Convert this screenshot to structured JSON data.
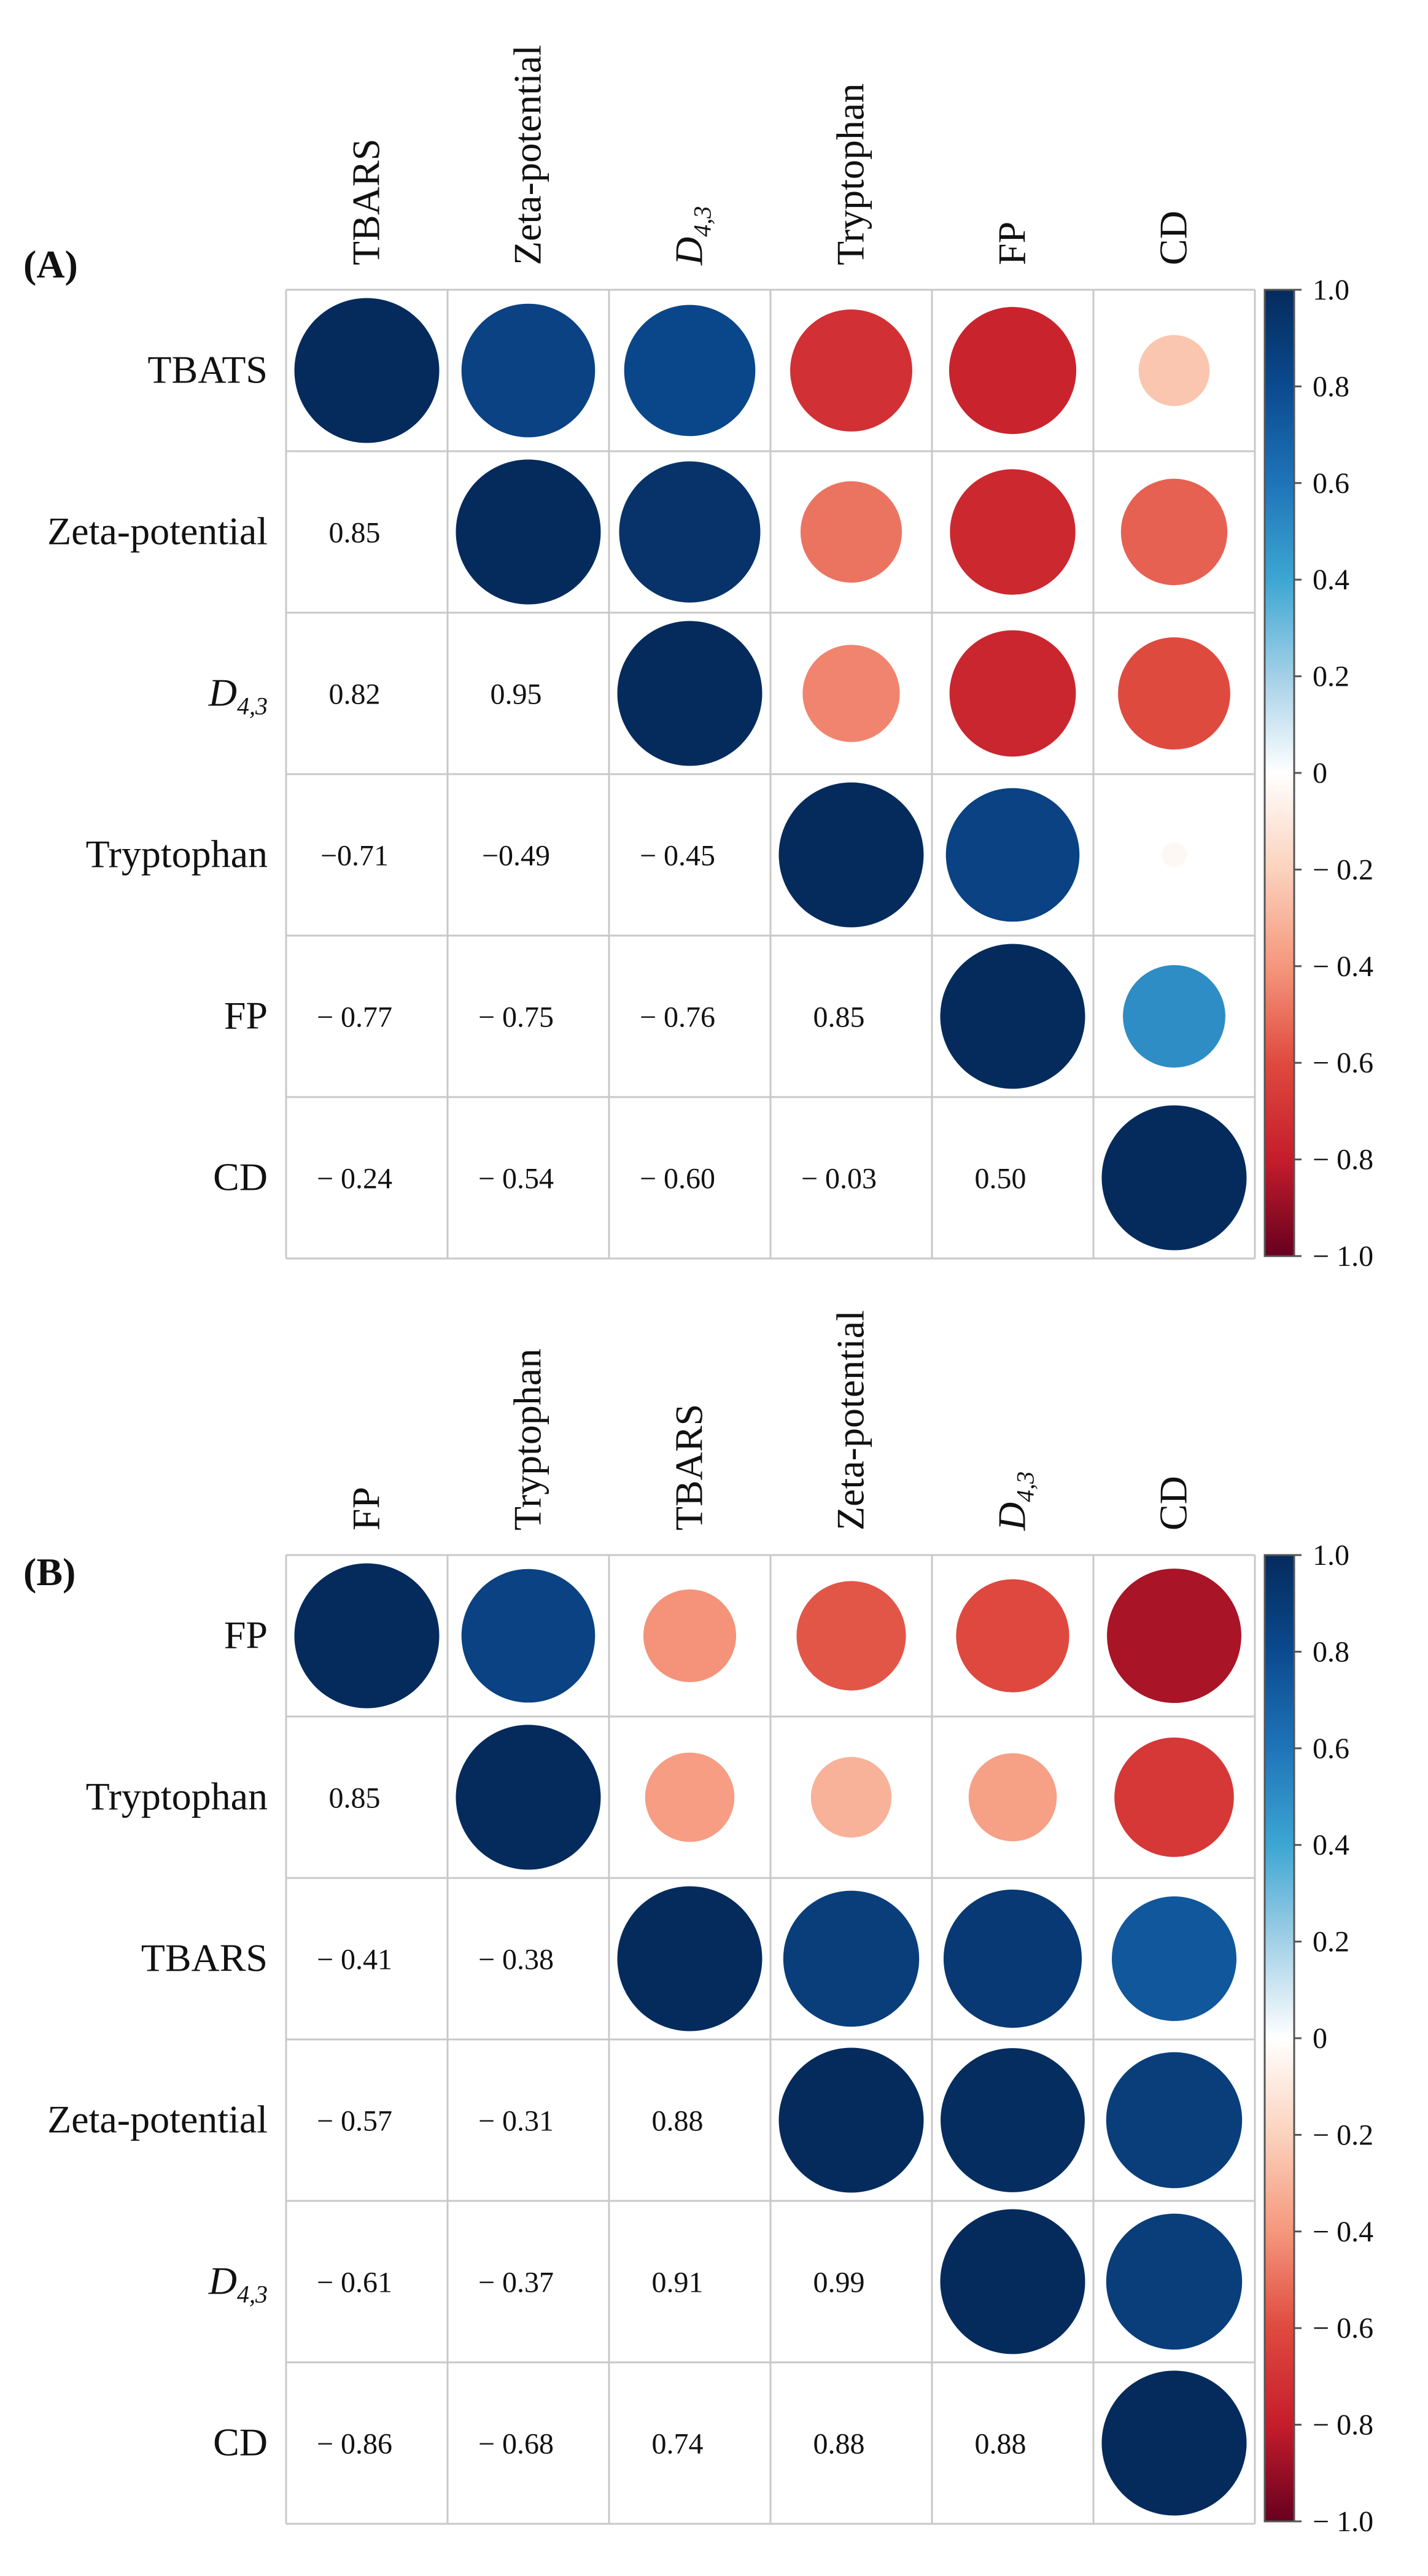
{
  "chart_data": [
    {
      "type": "heatmap",
      "panel_label": "(A)",
      "columns": [
        {
          "text": "TBARS"
        },
        {
          "text": "Zeta-potential"
        },
        {
          "text": "D",
          "sub": "4,3"
        },
        {
          "text": "Tryptophan"
        },
        {
          "text": "FP"
        },
        {
          "text": "CD"
        }
      ],
      "rows": [
        {
          "text": "TBATS"
        },
        {
          "text": "Zeta-potential"
        },
        {
          "text": "D",
          "sub": "4,3"
        },
        {
          "text": "Tryptophan"
        },
        {
          "text": "FP"
        },
        {
          "text": "CD"
        }
      ],
      "matrix": [
        [
          1.0,
          0.85,
          0.82,
          -0.71,
          -0.77,
          -0.24
        ],
        [
          0.85,
          1.0,
          0.95,
          -0.49,
          -0.75,
          -0.54
        ],
        [
          0.82,
          0.95,
          1.0,
          -0.45,
          -0.76,
          -0.6
        ],
        [
          -0.71,
          -0.49,
          -0.45,
          1.0,
          0.85,
          -0.03
        ],
        [
          -0.77,
          -0.75,
          -0.76,
          0.85,
          1.0,
          0.5
        ],
        [
          -0.24,
          -0.54,
          -0.6,
          -0.03,
          0.5,
          1.0
        ]
      ],
      "lower_labels": [
        [
          null,
          null,
          null,
          null,
          null,
          null
        ],
        [
          "0.85",
          null,
          null,
          null,
          null,
          null
        ],
        [
          "0.82",
          "0.95",
          null,
          null,
          null,
          null
        ],
        [
          "−0.71",
          "−0.49",
          "− 0.45",
          null,
          null,
          null
        ],
        [
          "− 0.77",
          "− 0.75",
          "− 0.76",
          "0.85",
          null,
          null
        ],
        [
          "− 0.24",
          "− 0.54",
          "− 0.60",
          "− 0.03",
          "0.50",
          null
        ]
      ],
      "colorbar": {
        "range": [
          -1.0,
          1.0
        ],
        "ticks": [
          1.0,
          0.8,
          0.6,
          0.4,
          0.2,
          0,
          -0.2,
          -0.4,
          -0.6,
          -0.8,
          -1.0
        ],
        "tick_labels": [
          "1.0",
          "0.8",
          "0.6",
          "0.4",
          "0.2",
          "0",
          "− 0.2",
          "− 0.4",
          "− 0.6",
          "− 0.8",
          "− 1.0"
        ]
      }
    },
    {
      "type": "heatmap",
      "panel_label": "(B)",
      "columns": [
        {
          "text": "FP"
        },
        {
          "text": "Tryptophan"
        },
        {
          "text": "TBARS"
        },
        {
          "text": "Zeta-potential"
        },
        {
          "text": "D",
          "sub": "4,3"
        },
        {
          "text": "CD"
        }
      ],
      "rows": [
        {
          "text": "FP"
        },
        {
          "text": "Tryptophan"
        },
        {
          "text": "TBARS"
        },
        {
          "text": "Zeta-potential"
        },
        {
          "text": "D",
          "sub": "4,3"
        },
        {
          "text": "CD"
        }
      ],
      "matrix": [
        [
          1.0,
          0.85,
          -0.41,
          -0.57,
          -0.61,
          -0.86
        ],
        [
          0.85,
          1.0,
          -0.38,
          -0.31,
          -0.37,
          -0.68
        ],
        [
          -0.41,
          -0.38,
          1.0,
          0.88,
          0.91,
          0.74
        ],
        [
          -0.57,
          -0.31,
          0.88,
          1.0,
          0.99,
          0.88
        ],
        [
          -0.61,
          -0.37,
          0.91,
          0.99,
          1.0,
          0.88
        ],
        [
          -0.86,
          -0.68,
          0.74,
          0.88,
          0.88,
          1.0
        ]
      ],
      "lower_labels": [
        [
          null,
          null,
          null,
          null,
          null,
          null
        ],
        [
          "0.85",
          null,
          null,
          null,
          null,
          null
        ],
        [
          "− 0.41",
          "− 0.38",
          null,
          null,
          null,
          null
        ],
        [
          "− 0.57",
          "− 0.31",
          "0.88",
          null,
          null,
          null
        ],
        [
          "− 0.61",
          "− 0.37",
          "0.91",
          "0.99",
          null,
          null
        ],
        [
          "− 0.86",
          "− 0.68",
          "0.74",
          "0.88",
          "0.88",
          null
        ]
      ],
      "colorbar": {
        "range": [
          -1.0,
          1.0
        ],
        "ticks": [
          1.0,
          0.8,
          0.6,
          0.4,
          0.2,
          0,
          -0.2,
          -0.4,
          -0.6,
          -0.8,
          -1.0
        ],
        "tick_labels": [
          "1.0",
          "0.8",
          "0.6",
          "0.4",
          "0.2",
          "0",
          "− 0.2",
          "− 0.4",
          "− 0.6",
          "− 0.8",
          "− 1.0"
        ]
      }
    }
  ]
}
